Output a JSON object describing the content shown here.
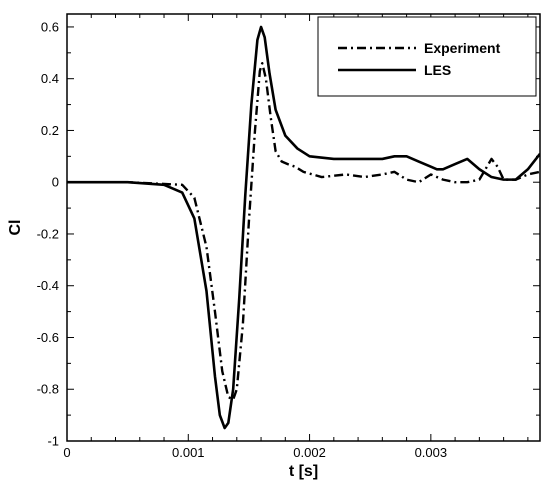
{
  "chart_data": {
    "type": "line",
    "title": "",
    "xlabel": "t [s]",
    "ylabel": "Cl",
    "xlim": [
      0,
      0.0039
    ],
    "ylim": [
      -1,
      0.65
    ],
    "xticks": [
      0,
      0.001,
      0.002,
      0.003
    ],
    "xtick_labels": [
      "0",
      "0.001",
      "0.002",
      "0.003"
    ],
    "yticks": [
      -1,
      -0.8,
      -0.6,
      -0.4,
      -0.2,
      0,
      0.2,
      0.4,
      0.6
    ],
    "ytick_labels": [
      "-1",
      "-0.8",
      "-0.6",
      "-0.4",
      "-0.2",
      "0",
      "0.2",
      "0.4",
      "0.6"
    ],
    "grid": false,
    "legend_position": "top-right",
    "series": [
      {
        "name": "Experiment",
        "style": "dashdot",
        "color": "#000000",
        "x": [
          0,
          0.0005,
          0.00095,
          0.00105,
          0.00115,
          0.00122,
          0.00128,
          0.00133,
          0.00137,
          0.0014,
          0.00145,
          0.0015,
          0.00155,
          0.00159,
          0.00161,
          0.00164,
          0.00168,
          0.00172,
          0.00177,
          0.00182,
          0.00188,
          0.00195,
          0.0021,
          0.0023,
          0.00245,
          0.0026,
          0.0027,
          0.0028,
          0.0029,
          0.003,
          0.0031,
          0.0032,
          0.0033,
          0.0034,
          0.0035,
          0.00355,
          0.0036,
          0.0037,
          0.0038,
          0.0039
        ],
        "y": [
          0,
          0,
          -0.01,
          -0.06,
          -0.25,
          -0.5,
          -0.73,
          -0.83,
          -0.84,
          -0.8,
          -0.55,
          -0.15,
          0.2,
          0.43,
          0.46,
          0.4,
          0.25,
          0.12,
          0.08,
          0.07,
          0.06,
          0.04,
          0.02,
          0.03,
          0.02,
          0.03,
          0.04,
          0.01,
          0.0,
          0.03,
          0.01,
          0.0,
          0.0,
          0.01,
          0.09,
          0.06,
          0.01,
          0.01,
          0.03,
          0.04
        ]
      },
      {
        "name": "LES",
        "style": "solid",
        "color": "#000000",
        "x": [
          0,
          0.0005,
          0.0008,
          0.00095,
          0.00105,
          0.00115,
          0.00122,
          0.00126,
          0.0013,
          0.00133,
          0.00137,
          0.00142,
          0.00147,
          0.00152,
          0.00157,
          0.0016,
          0.00163,
          0.00167,
          0.00172,
          0.0018,
          0.0019,
          0.002,
          0.0022,
          0.0024,
          0.0026,
          0.0027,
          0.0028,
          0.0029,
          0.003,
          0.00305,
          0.0031,
          0.0032,
          0.0033,
          0.0034,
          0.0035,
          0.0036,
          0.0037,
          0.0038,
          0.0039
        ],
        "y": [
          0,
          0,
          -0.01,
          -0.04,
          -0.14,
          -0.42,
          -0.75,
          -0.9,
          -0.95,
          -0.93,
          -0.8,
          -0.45,
          -0.05,
          0.3,
          0.55,
          0.6,
          0.56,
          0.42,
          0.28,
          0.18,
          0.13,
          0.1,
          0.09,
          0.09,
          0.09,
          0.1,
          0.1,
          0.08,
          0.06,
          0.05,
          0.05,
          0.07,
          0.09,
          0.05,
          0.02,
          0.01,
          0.01,
          0.05,
          0.11
        ]
      }
    ]
  }
}
